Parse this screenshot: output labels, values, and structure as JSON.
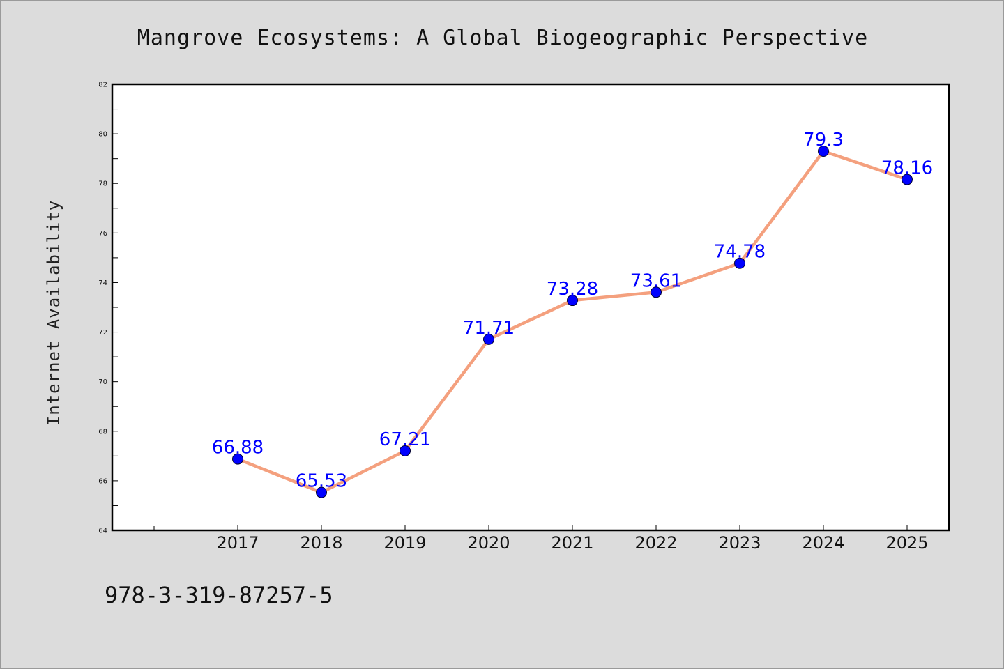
{
  "title": "Mangrove Ecosystems: A Global Biogeographic Perspective",
  "footer_code": "978-3-319-87257-5",
  "colors": {
    "background": "#dcdcdc",
    "plot_area": "#ffffff",
    "line": "#f4a07e",
    "marker": "#0000ff",
    "data_label": "#0000ff"
  },
  "chart_data": {
    "type": "line",
    "title": "Mangrove Ecosystems: A Global Biogeographic Perspective",
    "xlabel": "",
    "ylabel": "Internet Availability",
    "categories": [
      "2017",
      "2018",
      "2019",
      "2020",
      "2021",
      "2022",
      "2023",
      "2024",
      "2025"
    ],
    "series": [
      {
        "values": [
          66.88,
          65.53,
          67.21,
          71.71,
          73.28,
          73.61,
          74.78,
          79.3,
          78.16
        ],
        "data_labels": [
          "66.88",
          "65.53",
          "67.21",
          "71.71",
          "73.28",
          "73.61",
          "74.78",
          "79.3",
          "78.16"
        ]
      }
    ],
    "ylim": [
      64,
      82
    ],
    "y_ticks": [
      "64",
      "66",
      "68",
      "70",
      "72",
      "74",
      "76",
      "78",
      "80",
      "82"
    ],
    "grid": false,
    "legend": "none"
  }
}
